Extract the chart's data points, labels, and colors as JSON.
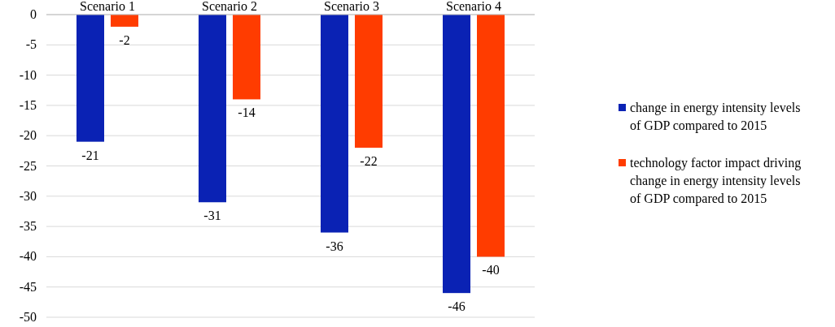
{
  "chart_data": {
    "type": "bar",
    "categories": [
      "Scenario 1",
      "Scenario 2",
      "Scenario 3",
      "Scenario 4"
    ],
    "series": [
      {
        "name": "change in energy intensity levels of GDP compared to 2015",
        "color": "#0a22b4",
        "values": [
          -21,
          -31,
          -36,
          -46
        ]
      },
      {
        "name": "technology factor impact driving change in energy intensity levels of GDP compared to 2015",
        "color": "#ff3c00",
        "values": [
          -2,
          -14,
          -22,
          -40
        ]
      }
    ],
    "ylim": [
      -50,
      0
    ],
    "yticks": [
      0,
      -5,
      -10,
      -15,
      -20,
      -25,
      -30,
      -35,
      -40,
      -45,
      -50
    ],
    "grid": "y",
    "legend": "right",
    "data_labels": true
  }
}
